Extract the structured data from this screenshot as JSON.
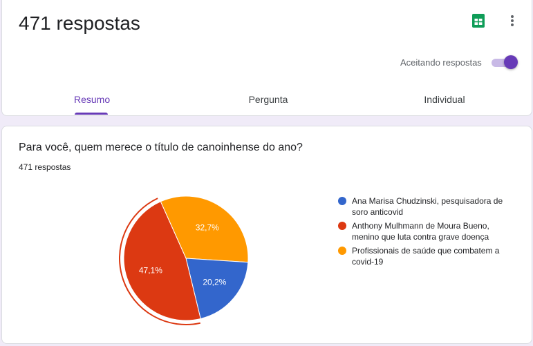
{
  "header": {
    "title": "471 respostas",
    "accepting_label": "Aceitando respostas",
    "accepting": true,
    "sheets_icon": "google-sheets-icon",
    "more_icon": "more-vert-icon",
    "tabs": [
      {
        "label": "Resumo",
        "active": true
      },
      {
        "label": "Pergunta",
        "active": false
      },
      {
        "label": "Individual",
        "active": false
      }
    ],
    "accent_color": "#673ab7"
  },
  "question": {
    "title": "Para você, quem merece o título de canoinhense do ano?",
    "count_label": "471 respostas"
  },
  "chart_data": {
    "type": "pie",
    "slices": [
      {
        "label": "Ana Marisa Chudzinski, pesquisadora de soro anticovid",
        "value": 20.2,
        "display": "20,2%",
        "color": "#3366cc"
      },
      {
        "label": "Anthony Mulhmann de Moura Bueno, menino que luta contra grave doença",
        "value": 47.1,
        "display": "47,1%",
        "color": "#dc3912"
      },
      {
        "label": "Profissionais de saúde que combatem a covid-19",
        "value": 32.7,
        "display": "32,7%",
        "color": "#ff9900"
      }
    ],
    "highlighted_slice": 1,
    "legend_position": "right"
  }
}
